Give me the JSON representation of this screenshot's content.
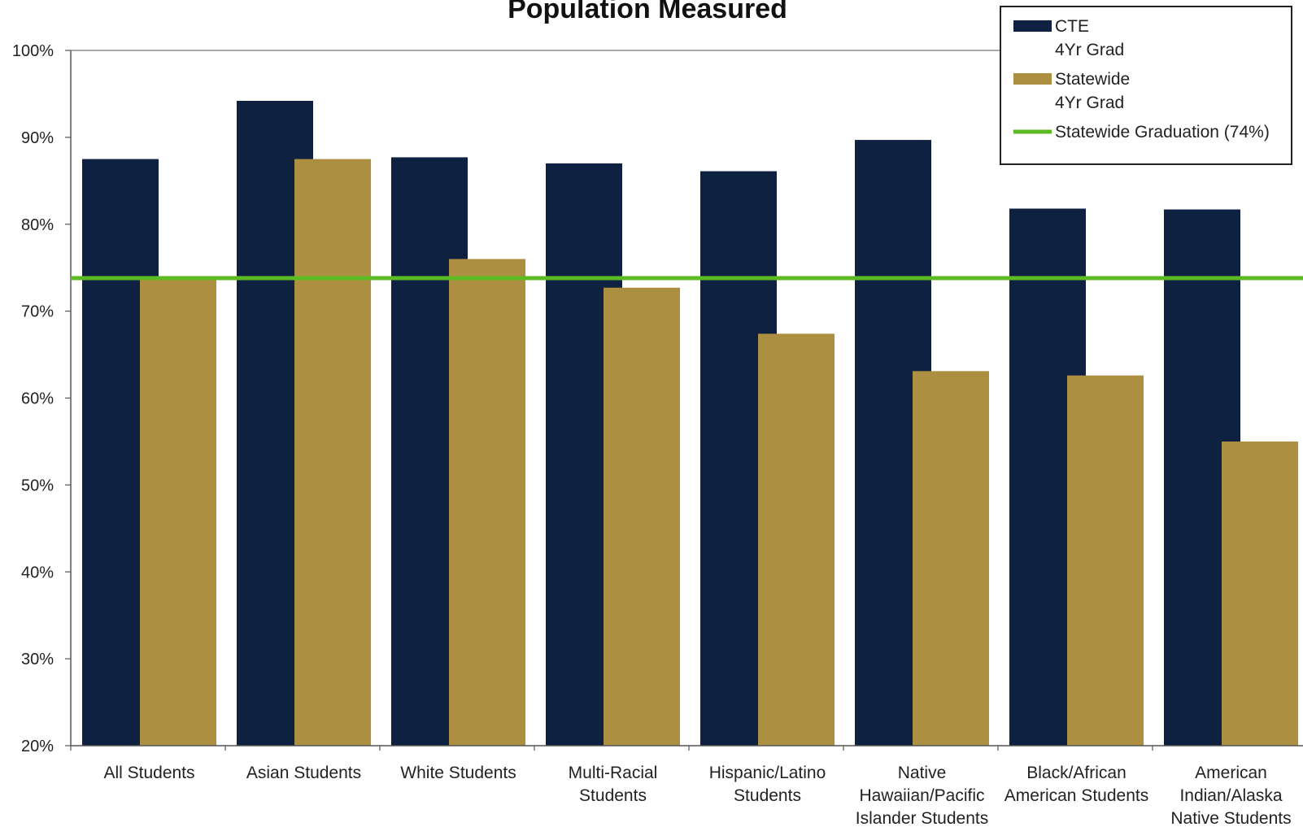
{
  "chart_data": {
    "type": "bar",
    "title": "Population Measured",
    "xlabel": "",
    "ylabel": "",
    "ylim": [
      20,
      100
    ],
    "y_tick_labels": [
      "20%",
      "30%",
      "40%",
      "50%",
      "60%",
      "70%",
      "80%",
      "90%",
      "100%"
    ],
    "y_tick_values": [
      20,
      30,
      40,
      50,
      60,
      70,
      80,
      90,
      100
    ],
    "categories": [
      [
        "All Students"
      ],
      [
        "Asian Students"
      ],
      [
        "White Students"
      ],
      [
        "Multi-Racial",
        "Students"
      ],
      [
        "Hispanic/Latino",
        "Students"
      ],
      [
        "Native",
        "Hawaiian/Pacific",
        "Islander Students"
      ],
      [
        "Black/African",
        "American Students"
      ],
      [
        "American",
        "Indian/Alaska",
        "Native Students"
      ]
    ],
    "series": [
      {
        "name": "CTE 4Yr Grad",
        "legend_lines": [
          "CTE",
          "4Yr Grad"
        ],
        "color": "#0f2140",
        "values": [
          87.5,
          94.2,
          87.7,
          87.0,
          86.1,
          89.7,
          81.8,
          81.7
        ]
      },
      {
        "name": "Statewide 4Yr Grad",
        "legend_lines": [
          "Statewide",
          "4Yr Grad"
        ],
        "color": "#ad8f42",
        "values": [
          73.8,
          87.5,
          76.0,
          72.7,
          67.4,
          63.1,
          62.6,
          55.0
        ]
      }
    ],
    "reference_line": {
      "name": "Statewide Graduation (74%)",
      "value": 73.8,
      "color": "#5cbb22"
    },
    "grid": false,
    "legend_position": "top-right"
  }
}
